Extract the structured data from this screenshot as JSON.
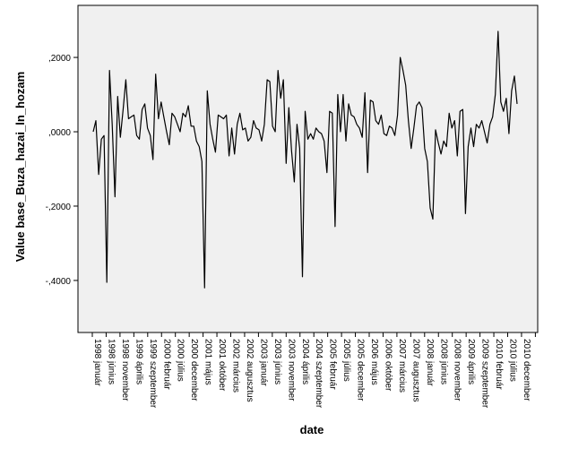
{
  "chart_data": {
    "type": "line",
    "xlabel": "date",
    "ylabel": "Value base_Buza_hazai_ln_hozam",
    "ylim": [
      -0.54,
      0.34
    ],
    "yticks": [
      {
        "value": 0.2,
        "label": ",2000"
      },
      {
        "value": 0.0,
        "label": ",0000"
      },
      {
        "value": -0.2,
        "label": "-,2000"
      },
      {
        "value": -0.4,
        "label": "-,4000"
      }
    ],
    "xticks": [
      "1998 január",
      "1998 június",
      "1998 november",
      "1999 április",
      "1999 szeptember",
      "2000 február",
      "2000 július",
      "2000 december",
      "2001 május",
      "2001 október",
      "2002 március",
      "2002 augusztus",
      "2003 január",
      "2003 június",
      "2003 november",
      "2004 április",
      "2004 szeptember",
      "2005 február",
      "2005 július",
      "2005 december",
      "2006 május",
      "2006 október",
      "2007 március",
      "2007 augusztus",
      "2008 január",
      "2008 június",
      "2008 november",
      "2009 április",
      "2009 szeptember",
      "2010 február",
      "2010 július",
      "2010 december"
    ],
    "series": [
      {
        "values": [
          0.0,
          0.03,
          -0.115,
          -0.02,
          -0.01,
          -0.405,
          0.165,
          0.02,
          -0.175,
          0.095,
          -0.015,
          0.06,
          0.14,
          0.035,
          0.04,
          0.045,
          -0.01,
          -0.02,
          0.06,
          0.075,
          0.01,
          -0.01,
          -0.075,
          0.155,
          0.035,
          0.08,
          0.04,
          0.0,
          -0.035,
          0.05,
          0.04,
          0.02,
          0.0,
          0.05,
          0.04,
          0.07,
          0.015,
          0.015,
          -0.025,
          -0.04,
          -0.08,
          -0.42,
          0.11,
          0.02,
          -0.02,
          -0.055,
          0.045,
          0.04,
          0.035,
          0.045,
          -0.065,
          0.01,
          -0.06,
          0.02,
          0.05,
          0.005,
          0.01,
          -0.025,
          -0.015,
          0.03,
          0.01,
          0.005,
          -0.025,
          0.02,
          0.14,
          0.135,
          0.015,
          0.0,
          0.165,
          0.09,
          0.14,
          -0.085,
          0.065,
          -0.05,
          -0.135,
          0.02,
          -0.045,
          -0.39,
          0.055,
          -0.02,
          -0.005,
          -0.02,
          0.01,
          0.0,
          -0.005,
          -0.025,
          -0.11,
          0.055,
          0.05,
          -0.255,
          0.1,
          0.0,
          0.1,
          -0.025,
          0.075,
          0.045,
          0.04,
          0.02,
          0.01,
          -0.015,
          0.105,
          -0.11,
          0.085,
          0.08,
          0.03,
          0.02,
          0.045,
          -0.005,
          -0.01,
          0.015,
          0.01,
          -0.01,
          0.045,
          0.2,
          0.165,
          0.125,
          0.03,
          -0.045,
          0.01,
          0.07,
          0.08,
          0.065,
          -0.045,
          -0.08,
          -0.205,
          -0.235,
          0.005,
          -0.03,
          -0.06,
          -0.025,
          -0.04,
          0.05,
          0.01,
          0.03,
          -0.065,
          0.055,
          0.06,
          -0.22,
          -0.04,
          0.01,
          -0.04,
          0.02,
          0.01,
          0.03,
          0.0,
          -0.03,
          0.02,
          0.04,
          0.1,
          0.27,
          0.08,
          0.055,
          0.09,
          -0.005,
          0.11,
          0.15,
          0.075
        ]
      }
    ]
  }
}
